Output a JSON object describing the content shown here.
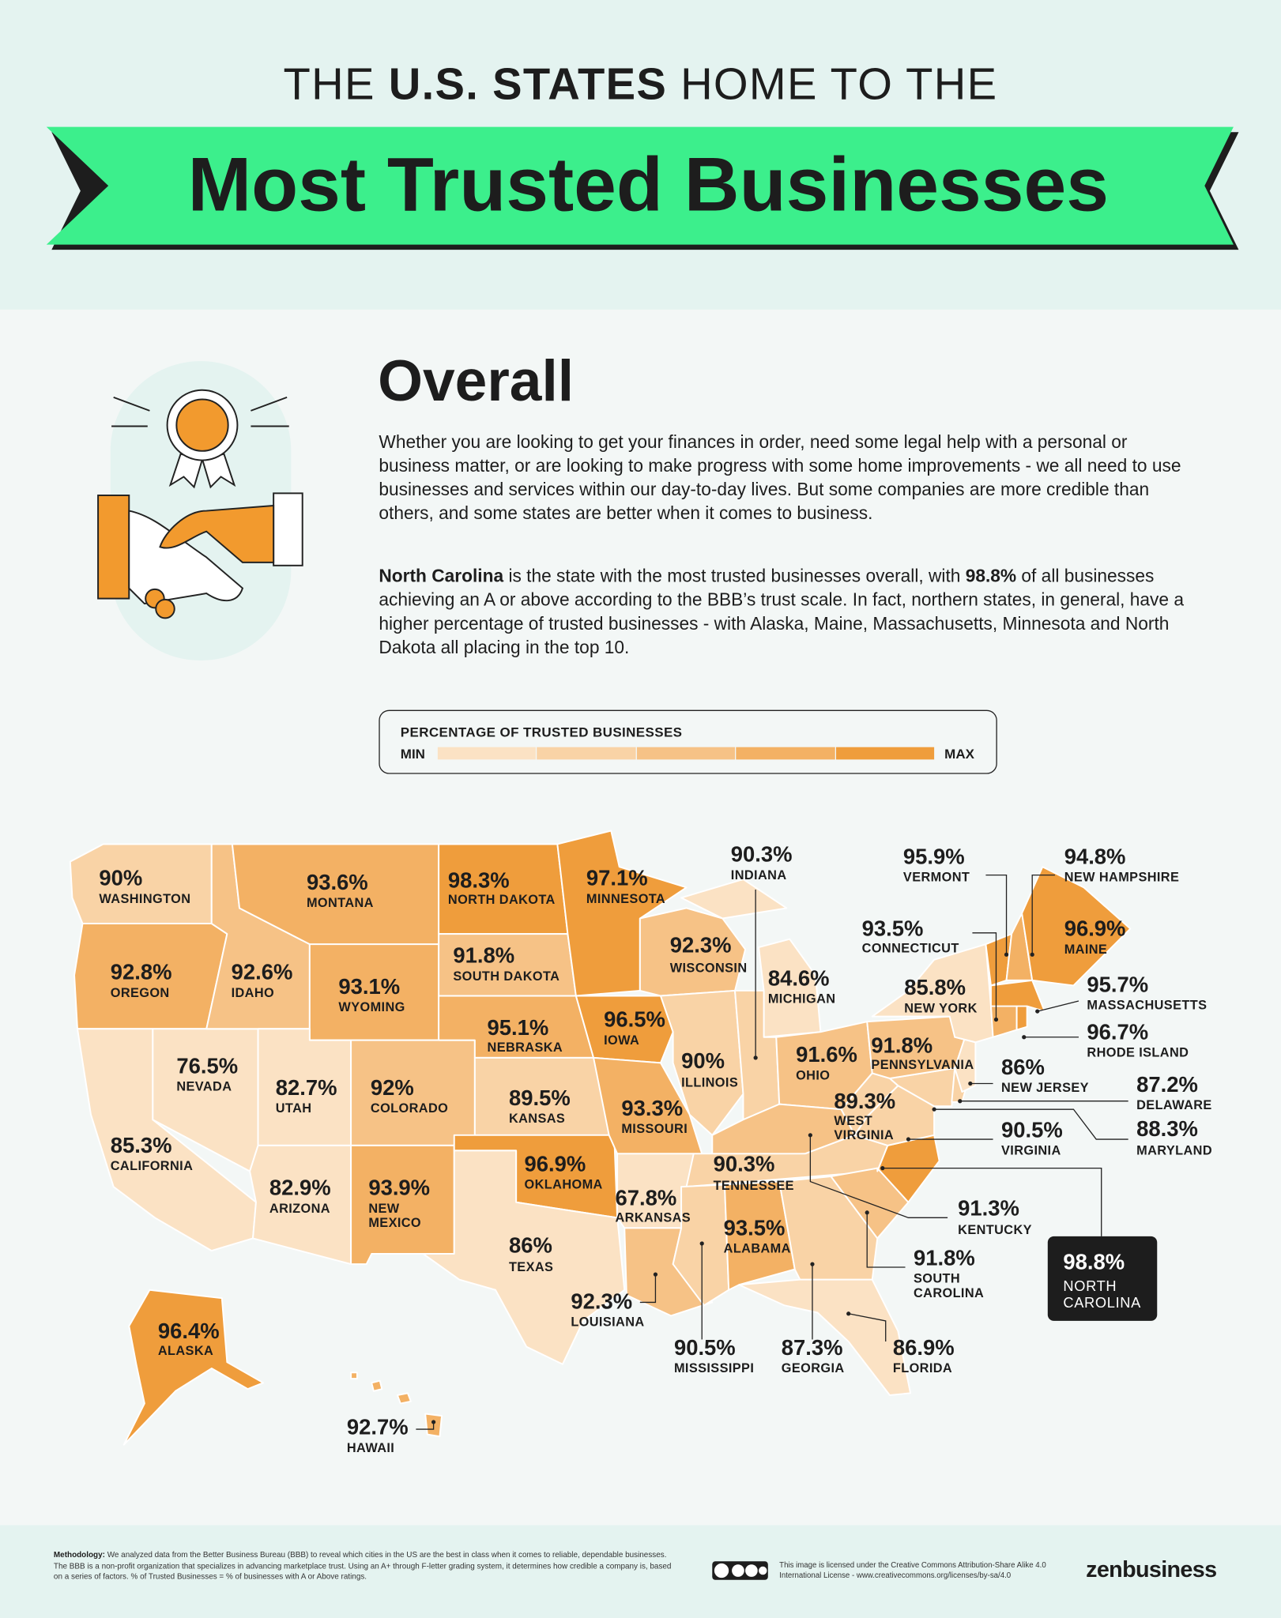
{
  "header": {
    "title_runs": [
      {
        "text": "THE ",
        "bold": false
      },
      {
        "text": "U.S. STATES",
        "bold": true
      },
      {
        "text": " HOME TO THE",
        "bold": false
      }
    ],
    "banner": "Most Trusted Businesses"
  },
  "intro": {
    "heading": "Overall",
    "paragraphs": [
      [
        {
          "text": "Whether you are looking to get your finances in order, need some legal help with a personal or business matter, or are looking to make progress with some home improvements - we all need to use businesses and services within our day-to-day lives. But some companies are more credible than others, and some states are better when it comes to business.",
          "bold": false
        }
      ],
      [
        {
          "text": "North Carolina",
          "bold": true
        },
        {
          "text": " is the state with the most trusted businesses overall, with ",
          "bold": false
        },
        {
          "text": "98.8%",
          "bold": true
        },
        {
          "text": " of all businesses achieving an A or above according to the BBB’s trust scale. In fact, northern states, in general, have a higher percentage of trusted businesses - with Alaska, Maine, Massachusetts, Minnesota and North Dakota all placing in the top 10.",
          "bold": false
        }
      ]
    ]
  },
  "legend": {
    "title": "PERCENTAGE OF TRUSTED BUSINESSES",
    "min": "MIN",
    "max": "MAX"
  },
  "chart_data": {
    "type": "choropleth",
    "colors": [
      "#fbe2c4",
      "#f9d3a6",
      "#f6c286",
      "#f3b164",
      "#ef9d3c"
    ],
    "categories": [
      "WASHINGTON",
      "OREGON",
      "CALIFORNIA",
      "NEVADA",
      "IDAHO",
      "MONTANA",
      "WYOMING",
      "UTAH",
      "COLORADO",
      "ARIZONA",
      "NEW MEXICO",
      "NORTH DAKOTA",
      "SOUTH DAKOTA",
      "NEBRASKA",
      "KANSAS",
      "OKLAHOMA",
      "TEXAS",
      "MINNESOTA",
      "IOWA",
      "MISSOURI",
      "ARKANSAS",
      "LOUISIANA",
      "WISCONSIN",
      "ILLINOIS",
      "MICHIGAN",
      "INDIANA",
      "OHIO",
      "KENTUCKY",
      "TENNESSEE",
      "MISSISSIPPI",
      "ALABAMA",
      "GEORGIA",
      "FLORIDA",
      "SOUTH CAROLINA",
      "NORTH CAROLINA",
      "VIRGINIA",
      "WEST VIRGINIA",
      "MARYLAND",
      "DELAWARE",
      "PENNSYLVANIA",
      "NEW JERSEY",
      "NEW YORK",
      "CONNECTICUT",
      "RHODE ISLAND",
      "MASSACHUSETTS",
      "VERMONT",
      "NEW HAMPSHIRE",
      "MAINE",
      "ALASKA",
      "HAWAII"
    ],
    "values": [
      90,
      92.8,
      85.3,
      76.5,
      92.6,
      93.6,
      93.1,
      82.7,
      92,
      82.9,
      93.9,
      98.3,
      91.8,
      95.1,
      89.5,
      96.9,
      86,
      97.1,
      96.5,
      93.3,
      67.8,
      92.3,
      92.3,
      90,
      84.6,
      90.3,
      91.6,
      91.3,
      90.3,
      90.5,
      93.5,
      87.3,
      86.9,
      91.8,
      98.8,
      90.5,
      89.3,
      88.3,
      87.2,
      91.8,
      86,
      85.8,
      93.5,
      96.7,
      95.7,
      95.9,
      94.8,
      96.9,
      96.4,
      92.7
    ],
    "value_labels": [
      "90%",
      "92.8%",
      "85.3%",
      "76.5%",
      "92.6%",
      "93.6%",
      "93.1%",
      "82.7%",
      "92%",
      "82.9%",
      "93.9%",
      "98.3%",
      "91.8%",
      "95.1%",
      "89.5%",
      "96.9%",
      "86%",
      "97.1%",
      "96.5%",
      "93.3%",
      "67.8%",
      "92.3%",
      "92.3%",
      "90%",
      "84.6%",
      "90.3%",
      "91.6%",
      "91.3%",
      "90.3%",
      "90.5%",
      "93.5%",
      "87.3%",
      "86.9%",
      "91.8%",
      "98.8%",
      "90.5%",
      "89.3%",
      "88.3%",
      "87.2%",
      "91.8%",
      "86%",
      "85.8%",
      "93.5%",
      "96.7%",
      "95.7%",
      "95.9%",
      "94.8%",
      "96.9%",
      "96.4%",
      "92.7%"
    ]
  },
  "footer": {
    "methodology_label": "Methodology:",
    "methodology": "We analyzed data from the Better Business Bureau (BBB) to reveal which cities in the US are the best in class when it comes to reliable, dependable businesses. The BBB is a non-profit organization that specializes in advancing marketplace trust. Using an A+ through F-letter grading system, it determines how credible a company is, based on a series of factors. % of Trusted Businesses = % of businesses with A or Above ratings.",
    "license": "This image is licensed under the Creative Commons Attribution-Share Alike 4.0 International License - www.creativecommons.org/licenses/by-sa/4.0",
    "logo": "zenbusiness"
  }
}
